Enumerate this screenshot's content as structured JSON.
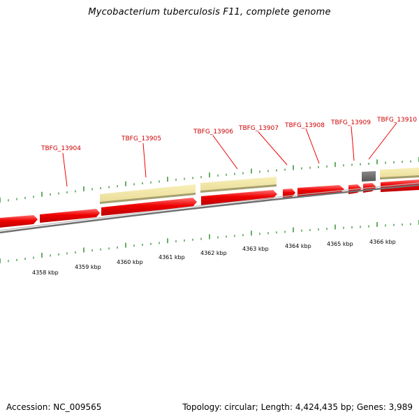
{
  "title": "Mycobacterium tuberculosis F11, complete genome",
  "footer": {
    "accession": "Accession: NC_009565",
    "summary": "Topology: circular; Length: 4,424,435 bp; Genes: 3,989"
  },
  "colors": {
    "forward_cds": "#ee0000",
    "reverse_cds": "#f2e6a0",
    "other_feature": "#666666",
    "backbone": "#888888",
    "ticks": "#228822",
    "label_text": "#cc0000"
  },
  "diagram": {
    "kbp_unit": "kbp",
    "kbp_marks": [
      4358,
      4359,
      4360,
      4361,
      4362,
      4363,
      4364,
      4365,
      4366
    ],
    "gene_labels": [
      "TBFG_13904",
      "TBFG_13905",
      "TBFG_13906",
      "TBFG_13907",
      "TBFG_13908",
      "TBFG_13909",
      "TBFG_13910"
    ],
    "forward_features": 11,
    "reverse_features": 3,
    "other_features": 1
  }
}
